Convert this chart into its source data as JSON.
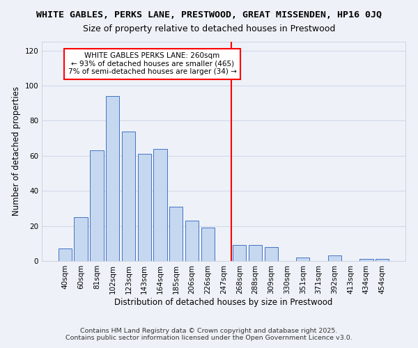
{
  "title_line1": "WHITE GABLES, PERKS LANE, PRESTWOOD, GREAT MISSENDEN, HP16 0JQ",
  "title_line2": "Size of property relative to detached houses in Prestwood",
  "xlabel": "Distribution of detached houses by size in Prestwood",
  "ylabel": "Number of detached properties",
  "bar_labels": [
    "40sqm",
    "60sqm",
    "81sqm",
    "102sqm",
    "123sqm",
    "143sqm",
    "164sqm",
    "185sqm",
    "206sqm",
    "226sqm",
    "247sqm",
    "268sqm",
    "288sqm",
    "309sqm",
    "330sqm",
    "351sqm",
    "371sqm",
    "392sqm",
    "413sqm",
    "434sqm",
    "454sqm"
  ],
  "bar_values": [
    7,
    25,
    63,
    94,
    74,
    61,
    64,
    31,
    23,
    19,
    0,
    9,
    9,
    8,
    0,
    2,
    0,
    3,
    0,
    1,
    1
  ],
  "bar_color": "#c5d8f0",
  "bar_edge_color": "#4472c4",
  "vline_x": 10.5,
  "vline_color": "red",
  "annotation_text": "WHITE GABLES PERKS LANE: 260sqm\n← 93% of detached houses are smaller (465)\n7% of semi-detached houses are larger (34) →",
  "annotation_box_color": "white",
  "annotation_box_edge_color": "red",
  "ylim": [
    0,
    125
  ],
  "yticks": [
    0,
    20,
    40,
    60,
    80,
    100,
    120
  ],
  "footer1": "Contains HM Land Registry data © Crown copyright and database right 2025.",
  "footer2": "Contains public sector information licensed under the Open Government Licence v3.0.",
  "bg_color": "#eef2f8",
  "grid_color": "#d0d8e8",
  "title_fontsize": 9.5,
  "subtitle_fontsize": 9,
  "label_fontsize": 8.5,
  "tick_fontsize": 7.5,
  "annotation_fontsize": 7.5,
  "footer_fontsize": 6.8
}
